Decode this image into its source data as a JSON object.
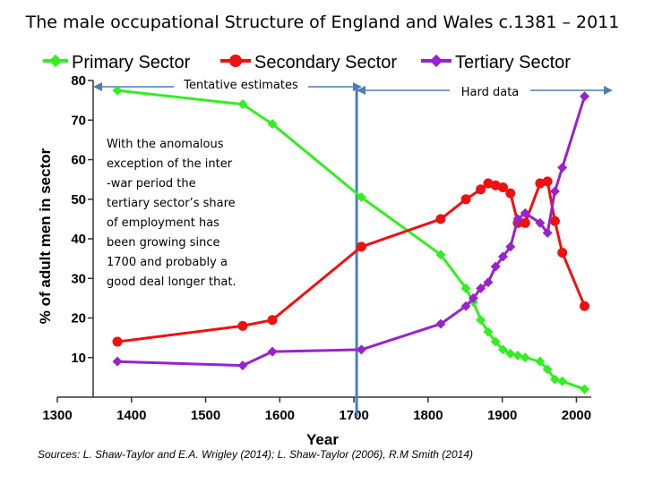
{
  "slide_title": "The male occupational Structure of England and Wales c.1381 – 2011",
  "chart_data": {
    "type": "line",
    "xlabel": "Year",
    "ylabel": "% of adult men in sector",
    "xlim": [
      1300,
      2020
    ],
    "ylim": [
      0,
      80
    ],
    "x_ticks": [
      1300,
      1400,
      1500,
      1600,
      1700,
      1800,
      1900,
      2000
    ],
    "y_ticks": [
      10,
      20,
      30,
      40,
      50,
      60,
      70,
      80
    ],
    "legend_position": "top",
    "series": [
      {
        "name": "Primary Sector",
        "color": "#33ee22",
        "marker": "diamond",
        "points": [
          [
            1381,
            77.5
          ],
          [
            1550,
            74
          ],
          [
            1590,
            69
          ],
          [
            1710,
            50.5
          ],
          [
            1817,
            36
          ],
          [
            1851,
            27.5
          ],
          [
            1861,
            24
          ],
          [
            1871,
            19.5
          ],
          [
            1881,
            16.5
          ],
          [
            1891,
            14
          ],
          [
            1901,
            12
          ],
          [
            1911,
            11
          ],
          [
            1921,
            10.5
          ],
          [
            1931,
            10
          ],
          [
            1951,
            9
          ],
          [
            1961,
            7
          ],
          [
            1971,
            4.5
          ],
          [
            1981,
            4
          ],
          [
            2011,
            2
          ]
        ]
      },
      {
        "name": "Secondary Sector",
        "color": "#ee1111",
        "marker": "circle",
        "points": [
          [
            1381,
            14
          ],
          [
            1550,
            18
          ],
          [
            1590,
            19.5
          ],
          [
            1710,
            38
          ],
          [
            1817,
            45
          ],
          [
            1851,
            50
          ],
          [
            1871,
            52.5
          ],
          [
            1881,
            54
          ],
          [
            1891,
            53.5
          ],
          [
            1901,
            53
          ],
          [
            1911,
            51.5
          ],
          [
            1921,
            44
          ],
          [
            1931,
            44
          ],
          [
            1951,
            54
          ],
          [
            1961,
            54.5
          ],
          [
            1971,
            44.5
          ],
          [
            1981,
            36.5
          ],
          [
            2011,
            23
          ]
        ]
      },
      {
        "name": "Tertiary Sector",
        "color": "#9922cc",
        "marker": "diamond",
        "points": [
          [
            1381,
            9
          ],
          [
            1550,
            8
          ],
          [
            1590,
            11.5
          ],
          [
            1710,
            12
          ],
          [
            1817,
            18.5
          ],
          [
            1851,
            23
          ],
          [
            1861,
            25
          ],
          [
            1871,
            27.5
          ],
          [
            1881,
            29
          ],
          [
            1891,
            33
          ],
          [
            1901,
            35.5
          ],
          [
            1911,
            38
          ],
          [
            1921,
            45
          ],
          [
            1931,
            46.5
          ],
          [
            1951,
            44
          ],
          [
            1961,
            41.5
          ],
          [
            1971,
            52
          ],
          [
            1981,
            58
          ],
          [
            2011,
            76
          ]
        ]
      }
    ],
    "divider_year": 1700,
    "annotations": {
      "tentative_label": "Tentative estimates",
      "hard_label": "Hard data",
      "note_lines": [
        "With the anomalous",
        "exception of the inter",
        "-war period the",
        "tertiary sector’s share",
        "of employment has",
        "been growing since",
        "1700 and probably a",
        "good deal longer that."
      ]
    },
    "source": "Sources: L. Shaw-Taylor and E.A. Wrigley  (2014);  L. Shaw-Taylor (2006), R.M Smith (2014)"
  }
}
